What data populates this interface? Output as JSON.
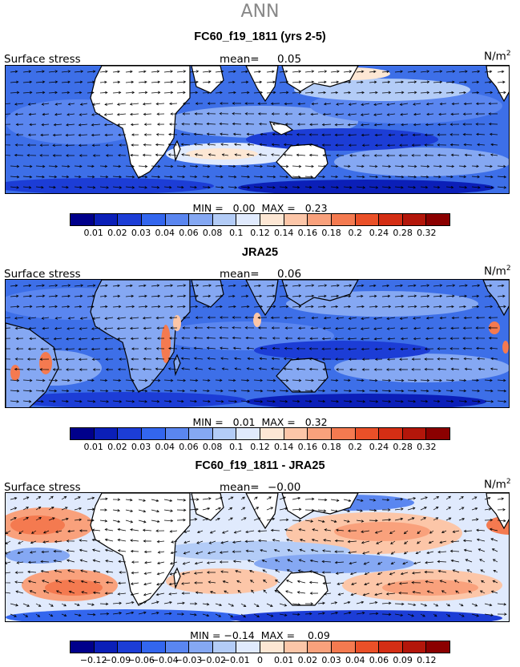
{
  "season": "ANN",
  "panels": [
    {
      "title": "FC60_f19_1811 (yrs 2-5)",
      "variable": "Surface stress",
      "mean_label": "mean=",
      "mean_value": "0.05",
      "units_base": "N/m",
      "units_exp": "2",
      "min_label": "MIN =",
      "min_value": "0.00",
      "max_label": "MAX =",
      "max_value": "0.23",
      "colorbar": {
        "colors": [
          "#00008b",
          "#0b1fb8",
          "#1c3dd6",
          "#3366ee",
          "#5a86f0",
          "#85a8f3",
          "#b3ccf7",
          "#e0eafd",
          "#fde7d4",
          "#fcc6a8",
          "#f9a17c",
          "#f47a50",
          "#ea5028",
          "#d42e14",
          "#b3160a",
          "#8b0000"
        ],
        "ticks": [
          "0.01",
          "0.02",
          "0.03",
          "0.04",
          "0.06",
          "0.08",
          "0.1",
          "0.12",
          "0.14",
          "0.16",
          "0.18",
          "0.2",
          "0.24",
          "0.28",
          "0.32"
        ]
      }
    },
    {
      "title": "JRA25",
      "variable": "Surface stress",
      "mean_label": "mean=",
      "mean_value": "0.06",
      "units_base": "N/m",
      "units_exp": "2",
      "min_label": "MIN =",
      "min_value": "0.01",
      "max_label": "MAX =",
      "max_value": "0.32",
      "colorbar": {
        "colors": [
          "#00008b",
          "#0b1fb8",
          "#1c3dd6",
          "#3366ee",
          "#5a86f0",
          "#85a8f3",
          "#b3ccf7",
          "#e0eafd",
          "#fde7d4",
          "#fcc6a8",
          "#f9a17c",
          "#f47a50",
          "#ea5028",
          "#d42e14",
          "#b3160a",
          "#8b0000"
        ],
        "ticks": [
          "0.01",
          "0.02",
          "0.03",
          "0.04",
          "0.06",
          "0.08",
          "0.1",
          "0.12",
          "0.14",
          "0.16",
          "0.18",
          "0.2",
          "0.24",
          "0.28",
          "0.32"
        ]
      }
    },
    {
      "title": "FC60_f19_1811 - JRA25",
      "variable": "Surface stress",
      "mean_label": "mean=",
      "mean_value": "−0.00",
      "units_base": "N/m",
      "units_exp": "2",
      "min_label": "MIN =",
      "min_value": "−0.14",
      "max_label": "MAX =",
      "max_value": "0.09",
      "colorbar": {
        "colors": [
          "#00008b",
          "#0b1fb8",
          "#1c3dd6",
          "#3366ee",
          "#5a86f0",
          "#85a8f3",
          "#b3ccf7",
          "#e0eafd",
          "#fde7d4",
          "#fcc6a8",
          "#f9a17c",
          "#f47a50",
          "#ea5028",
          "#d42e14",
          "#b3160a",
          "#8b0000"
        ],
        "ticks": [
          "−0.12",
          "−0.09",
          "−0.06",
          "−0.04",
          "−0.03",
          "−0.02",
          "−0.01",
          "0",
          "0.01",
          "0.02",
          "0.03",
          "0.04",
          "0.06",
          "0.09",
          "0.12"
        ]
      }
    }
  ]
}
